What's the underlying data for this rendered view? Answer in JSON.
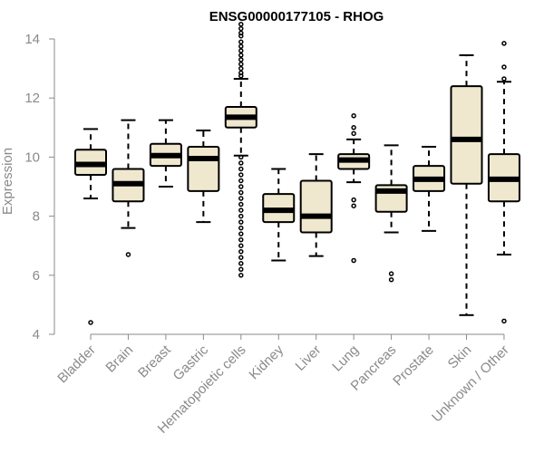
{
  "chart_data": {
    "type": "boxplot",
    "title": "ENSG00000177105 - RHOG",
    "xlabel": "",
    "ylabel": "Expression",
    "ylim": [
      4,
      14
    ],
    "yticks": [
      4,
      6,
      8,
      10,
      12,
      14
    ],
    "ytick_labels": [
      "4",
      "6",
      "8",
      "10",
      "12",
      "14"
    ],
    "categories": [
      "Bladder",
      "Brain",
      "Breast",
      "Gastric",
      "Hematopoietic cells",
      "Kidney",
      "Liver",
      "Lung",
      "Pancreas",
      "Prostate",
      "Skin",
      "Unknown / Other"
    ],
    "colors": {
      "box_fill": "#efe8cf",
      "box_stroke": "#000000",
      "median": "#000000",
      "axis": "#8a8a8a"
    },
    "boxes": [
      {
        "name": "Bladder",
        "whisker_low": 8.6,
        "q1": 9.4,
        "median": 9.75,
        "q3": 10.25,
        "whisker_high": 10.95,
        "outliers": [
          4.4
        ]
      },
      {
        "name": "Brain",
        "whisker_low": 7.6,
        "q1": 8.5,
        "median": 9.1,
        "q3": 9.6,
        "whisker_high": 11.25,
        "outliers": [
          6.7
        ]
      },
      {
        "name": "Breast",
        "whisker_low": 9.0,
        "q1": 9.7,
        "median": 10.05,
        "q3": 10.45,
        "whisker_high": 11.25,
        "outliers": []
      },
      {
        "name": "Gastric",
        "whisker_low": 7.8,
        "q1": 8.85,
        "median": 9.95,
        "q3": 10.35,
        "whisker_high": 10.9,
        "outliers": []
      },
      {
        "name": "Hematopoietic cells",
        "whisker_low": 10.05,
        "q1": 11.0,
        "median": 11.35,
        "q3": 11.7,
        "whisker_high": 12.65,
        "outliers": [
          14.5,
          14.35,
          14.2,
          14.1,
          13.9,
          13.75,
          13.6,
          13.45,
          13.3,
          13.15,
          13.0,
          12.85,
          12.75,
          10.0,
          9.8,
          9.6,
          9.4,
          9.2,
          9.0,
          8.8,
          8.6,
          8.4,
          8.2,
          8.0,
          7.8,
          7.6,
          7.4,
          7.2,
          7.0,
          6.8,
          6.6,
          6.4,
          6.2,
          6.0
        ]
      },
      {
        "name": "Kidney",
        "whisker_low": 6.5,
        "q1": 7.8,
        "median": 8.2,
        "q3": 8.75,
        "whisker_high": 9.6,
        "outliers": []
      },
      {
        "name": "Liver",
        "whisker_low": 6.65,
        "q1": 7.45,
        "median": 8.0,
        "q3": 9.2,
        "whisker_high": 10.1,
        "outliers": []
      },
      {
        "name": "Lung",
        "whisker_low": 9.15,
        "q1": 9.6,
        "median": 9.9,
        "q3": 10.1,
        "whisker_high": 10.6,
        "outliers": [
          11.4,
          11.0,
          10.8,
          8.55,
          8.35,
          6.5
        ]
      },
      {
        "name": "Pancreas",
        "whisker_low": 7.45,
        "q1": 8.15,
        "median": 8.85,
        "q3": 9.05,
        "whisker_high": 10.4,
        "outliers": [
          6.05,
          5.85
        ]
      },
      {
        "name": "Prostate",
        "whisker_low": 7.5,
        "q1": 8.85,
        "median": 9.25,
        "q3": 9.7,
        "whisker_high": 10.35,
        "outliers": []
      },
      {
        "name": "Skin",
        "whisker_low": 4.65,
        "q1": 9.1,
        "median": 10.6,
        "q3": 12.4,
        "whisker_high": 13.45,
        "outliers": []
      },
      {
        "name": "Unknown / Other",
        "whisker_low": 6.7,
        "q1": 8.5,
        "median": 9.25,
        "q3": 10.1,
        "whisker_high": 12.55,
        "outliers": [
          13.85,
          13.05,
          12.65,
          4.45
        ]
      }
    ]
  }
}
